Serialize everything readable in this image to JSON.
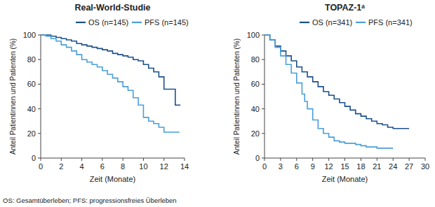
{
  "chart_data": [
    {
      "type": "line",
      "title": "Real-World-Studie",
      "x_label": "Zeit (Monate)",
      "y_label": "Anteil Patientinnen und Patienten (%)",
      "xlim": [
        0,
        14
      ],
      "xticks": [
        0,
        2,
        4,
        6,
        8,
        10,
        12,
        14
      ],
      "ylim": [
        0,
        100
      ],
      "yticks": [
        0,
        20,
        40,
        60,
        80,
        100
      ],
      "line_style": "step",
      "legend": "top",
      "series": [
        {
          "name": "OS (n=145)",
          "color": "#1c4f8c",
          "x": [
            0,
            0.5,
            1,
            1.5,
            2,
            2.5,
            3,
            3.5,
            4,
            4.5,
            5,
            5.5,
            6,
            6.5,
            7,
            7.5,
            8,
            8.5,
            9,
            9.5,
            10,
            10.5,
            11,
            11.5,
            12,
            13,
            13.1,
            13.6
          ],
          "values": [
            100,
            100,
            99,
            98,
            97,
            96,
            95,
            93,
            92,
            91,
            90,
            89,
            88,
            87,
            85,
            84,
            83,
            82,
            80,
            79,
            76,
            73,
            70,
            66,
            56,
            56,
            43,
            43
          ]
        },
        {
          "name": "PFS (n=145)",
          "color": "#4a9fd8",
          "x": [
            0,
            0.5,
            1,
            1.5,
            2,
            2.5,
            3,
            3.5,
            4,
            4.5,
            5,
            5.5,
            6,
            6.5,
            7,
            7.5,
            8,
            8.5,
            9,
            9.5,
            10,
            10.5,
            11,
            11.5,
            12,
            13.5
          ],
          "values": [
            100,
            99,
            97,
            95,
            92,
            90,
            87,
            84,
            80,
            78,
            76,
            74,
            71,
            68,
            65,
            62,
            58,
            55,
            49,
            43,
            33,
            30,
            28,
            25,
            21,
            21
          ]
        }
      ]
    },
    {
      "type": "line",
      "title": "TOPAZ-1ᵃ",
      "x_label": "Zeit (Monate)",
      "y_label": "Anteil Patientinnen und Patienten (%)",
      "xlim": [
        0,
        30
      ],
      "xticks": [
        0,
        3,
        6,
        9,
        12,
        15,
        18,
        21,
        24,
        27,
        30
      ],
      "ylim": [
        0,
        100
      ],
      "yticks": [
        0,
        20,
        40,
        60,
        80,
        100
      ],
      "line_style": "step",
      "legend": "top",
      "series": [
        {
          "name": "OS (n=341)",
          "color": "#1c4f8c",
          "x": [
            0,
            1,
            2,
            3,
            4,
            5,
            6,
            7,
            8,
            9,
            10,
            11,
            12,
            13,
            14,
            15,
            16,
            17,
            18,
            19,
            20,
            21,
            22,
            23,
            24,
            27
          ],
          "values": [
            100,
            96,
            91,
            87,
            83,
            79,
            74,
            70,
            66,
            62,
            58,
            54,
            51,
            48,
            45,
            42,
            39,
            36,
            34,
            32,
            30,
            28,
            27,
            25,
            24,
            24
          ]
        },
        {
          "name": "PFS (n=341)",
          "color": "#4a9fd8",
          "x": [
            0,
            1,
            2,
            3,
            4,
            5,
            6,
            7,
            7.5,
            8,
            9,
            10,
            11,
            12,
            13,
            14,
            15,
            16,
            17,
            18,
            19,
            20,
            21,
            24
          ],
          "values": [
            100,
            96,
            90,
            83,
            76,
            69,
            61,
            52,
            46,
            40,
            31,
            24,
            20,
            17,
            14,
            13,
            12,
            12,
            11,
            10,
            9,
            9,
            8,
            8
          ]
        }
      ]
    }
  ],
  "footnote": "OS: Gesamtüberleben; PFS: progressionsfreies Überleben"
}
